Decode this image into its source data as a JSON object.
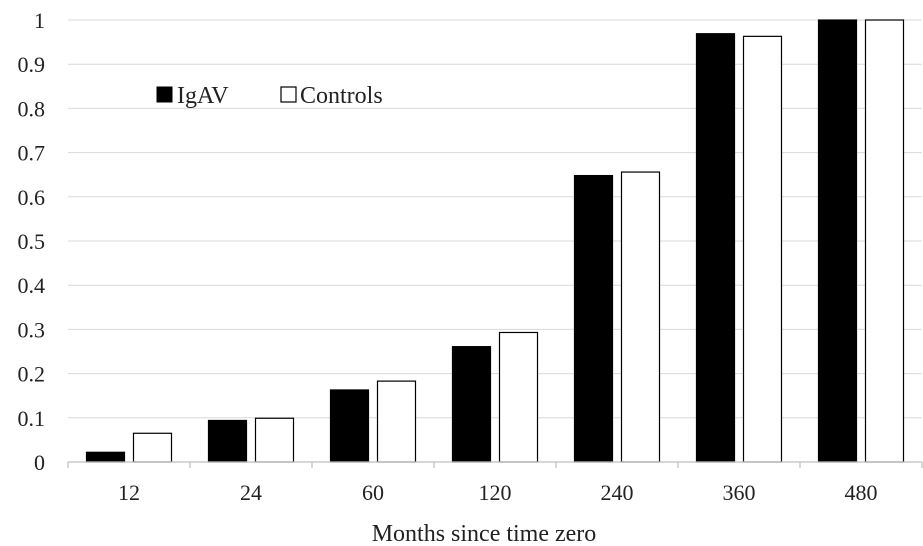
{
  "chart_data": {
    "type": "bar",
    "title": "",
    "xlabel": "Months since time zero",
    "ylabel": "",
    "categories": [
      "12",
      "24",
      "60",
      "120",
      "240",
      "360",
      "480"
    ],
    "ylim": [
      0,
      1
    ],
    "yticks": [
      "0",
      "0.1",
      "0.2",
      "0.3",
      "0.4",
      "0.5",
      "0.6",
      "0.7",
      "0.8",
      "0.9",
      "1"
    ],
    "grid": true,
    "legend_position": "top-left",
    "series": [
      {
        "name": "IgAV",
        "values": [
          0.022,
          0.094,
          0.163,
          0.261,
          0.648,
          0.969,
          1.0
        ],
        "fill": "#000000"
      },
      {
        "name": "Controls",
        "values": [
          0.065,
          0.099,
          0.183,
          0.293,
          0.656,
          0.963,
          1.0
        ],
        "fill": "#ffffff"
      }
    ]
  }
}
